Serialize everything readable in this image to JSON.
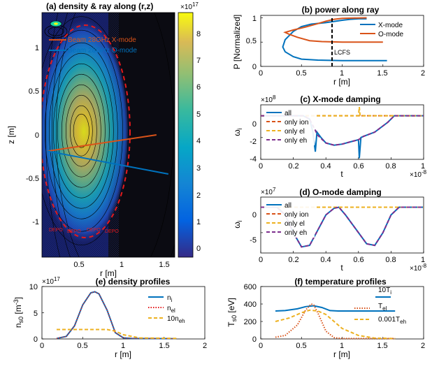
{
  "colors": {
    "blue": "#0072BD",
    "orange": "#D95319",
    "yellow": "#EDB120",
    "purple": "#7E2F8E",
    "red": "#E41A1C",
    "black": "#000000"
  },
  "panel_a": {
    "title": "(a) density & ray along (r,z)",
    "xlabel": "r [m]",
    "ylabel": "z [m]",
    "xticks": [
      "0.5",
      "1",
      "1.5"
    ],
    "yticks": [
      "1",
      "0.5",
      "0",
      "-0.5",
      "-1"
    ],
    "legend": [
      "Beam 28GHz X-mode",
      "Beam 28GHz O-mode"
    ],
    "colorbar_ticks": [
      "8",
      "7",
      "6",
      "5",
      "4",
      "3",
      "2",
      "1",
      "0"
    ],
    "colorbar_exponent": "×10",
    "colorbar_exponent_power": "17",
    "bottom_annotation": "DEPO"
  },
  "panel_b": {
    "title": "(b) power along ray",
    "xlabel": "r [m]",
    "ylabel": "P [Normalized]",
    "xticks": [
      "0",
      "0.5",
      "1",
      "1.5",
      "2"
    ],
    "yticks": [
      "1",
      "0.5",
      "0"
    ],
    "legend": [
      "X-mode",
      "O-mode"
    ],
    "annotation": "LCFS"
  },
  "panel_c": {
    "title": "(c) X-mode damping",
    "xlabel": "t",
    "ylabel": "ω",
    "ylabel_sub": "i",
    "xticks": [
      "0",
      "0.2",
      "0.4",
      "0.6",
      "0.8",
      "1"
    ],
    "yticks": [
      "0",
      "-2",
      "-4"
    ],
    "y_exponent": "×10",
    "y_exponent_power": "8",
    "x_exponent": "×10",
    "x_exponent_power": "-8",
    "legend": [
      "all",
      "only ion",
      "only el",
      "only eh"
    ]
  },
  "panel_d": {
    "title": "(d) O-mode damping",
    "xlabel": "t",
    "ylabel": "ω",
    "ylabel_sub": "i",
    "xticks": [
      "0",
      "0.2",
      "0.4",
      "0.6",
      "0.8",
      "1"
    ],
    "yticks": [
      "0",
      "-5"
    ],
    "y_exponent": "×10",
    "y_exponent_power": "7",
    "x_exponent": "×10",
    "x_exponent_power": "-8",
    "legend": [
      "all",
      "only ion",
      "only el",
      "only eh"
    ]
  },
  "panel_e": {
    "title": "(e) density profiles",
    "xlabel": "r [m]",
    "ylabel": "n",
    "ylabel_sub": "s0",
    "ylabel_unit": " [m",
    "ylabel_unit_sup": "-3",
    "ylabel_unit_end": "]",
    "xticks": [
      "0",
      "0.5",
      "1",
      "1.5",
      "2"
    ],
    "yticks": [
      "10",
      "5",
      "0"
    ],
    "y_exponent": "×10",
    "y_exponent_power": "17",
    "legend": [
      {
        "main": "n",
        "sub": "i"
      },
      {
        "main": "n",
        "sub": "el"
      },
      {
        "main": "10n",
        "sub": "eh"
      }
    ]
  },
  "panel_f": {
    "title": "(f) temperature profiles",
    "xlabel": "r [m]",
    "ylabel": "T",
    "ylabel_sub": "s0",
    "ylabel_unit": " [eV]",
    "xticks": [
      "0",
      "0.5",
      "1",
      "1.5",
      "2"
    ],
    "yticks": [
      "600",
      "400",
      "200",
      "0"
    ],
    "legend": [
      {
        "main": "10T",
        "sub": "i"
      },
      {
        "main": "T",
        "sub": "el"
      },
      {
        "main": "0.001T",
        "sub": "eh"
      }
    ]
  },
  "chart_data": [
    {
      "type": "heatmap",
      "title": "(a) density & ray along (r,z)",
      "xlabel": "r [m]",
      "ylabel": "z [m]",
      "xlim": [
        0.2,
        1.65
      ],
      "ylim": [
        -1.5,
        1.5
      ],
      "colorbar_range": [
        0,
        9
      ],
      "colorbar_exponent": 17,
      "peak": {
        "r": 0.63,
        "z": 0.05,
        "value": 8.8
      },
      "series": [
        {
          "name": "Beam 28GHz X-mode",
          "x": [
            0.26,
            1.45
          ],
          "y": [
            -0.2,
            0.0
          ]
        },
        {
          "name": "Beam 28GHz O-mode",
          "x": [
            0.26,
            1.58
          ],
          "y": [
            -0.2,
            -0.48
          ]
        }
      ]
    },
    {
      "type": "line",
      "title": "(b) power along ray",
      "xlabel": "r [m]",
      "ylabel": "P [Normalized]",
      "xlim": [
        0,
        2
      ],
      "ylim": [
        0,
        1.05
      ],
      "lcfs_r": 0.88,
      "series": [
        {
          "name": "X-mode",
          "x": [
            1.55,
            1.0,
            0.7,
            0.5,
            0.4,
            0.3,
            0.27,
            0.3,
            0.4,
            0.5,
            0.62,
            0.8,
            1.0,
            1.1,
            1.2,
            1.3
          ],
          "y": [
            0.12,
            0.12,
            0.13,
            0.15,
            0.2,
            0.3,
            0.4,
            0.55,
            0.72,
            0.82,
            0.87,
            0.9,
            0.95,
            0.97,
            0.98,
            0.98
          ]
        },
        {
          "name": "O-mode",
          "x": [
            1.5,
            1.0,
            0.75,
            0.6,
            0.45,
            0.35,
            0.3,
            0.4,
            0.55,
            0.7,
            0.8,
            0.9,
            1.0,
            1.3
          ],
          "y": [
            0.5,
            0.5,
            0.51,
            0.53,
            0.6,
            0.66,
            0.7,
            0.75,
            0.81,
            0.88,
            0.93,
            0.97,
            0.99,
            1.0
          ]
        }
      ]
    },
    {
      "type": "line",
      "title": "(c) X-mode damping",
      "xlabel": "t",
      "ylabel": "ωi",
      "xlim": [
        0,
        1
      ],
      "ylim": [
        -4,
        1
      ],
      "x_exponent": -8,
      "y_exponent": 8,
      "series": [
        {
          "name": "all",
          "x": [
            0,
            0.26,
            0.3,
            0.32,
            0.335,
            0.345,
            0.37,
            0.4,
            0.45,
            0.5,
            0.55,
            0.6,
            0.605,
            0.615,
            0.63,
            0.7,
            0.78,
            0.82,
            1.0
          ],
          "y": [
            0,
            0,
            -0.3,
            -1.5,
            -3.3,
            -1.5,
            -2.0,
            -2.5,
            -2.7,
            -2.6,
            -2.4,
            -2.2,
            -3.9,
            -2.0,
            -1.9,
            -1.5,
            -0.6,
            0,
            0
          ]
        },
        {
          "name": "only ion",
          "x": [
            0,
            1.0
          ],
          "y": [
            0,
            0
          ]
        },
        {
          "name": "only el",
          "x": [
            0,
            0.6,
            0.605,
            0.61,
            1.0
          ],
          "y": [
            0,
            0,
            0.8,
            0,
            0
          ]
        },
        {
          "name": "only eh",
          "x": [
            0,
            0.26,
            0.3,
            0.35,
            0.4,
            0.45,
            0.5,
            0.55,
            0.6,
            0.63,
            0.7,
            0.78,
            0.82,
            1.0
          ],
          "y": [
            0,
            0,
            -0.3,
            -1.8,
            -2.5,
            -2.7,
            -2.6,
            -2.4,
            -2.2,
            -1.9,
            -1.5,
            -0.6,
            0,
            0
          ]
        }
      ]
    },
    {
      "type": "line",
      "title": "(d) O-mode damping",
      "xlabel": "t",
      "ylabel": "ωi",
      "xlim": [
        0,
        1
      ],
      "ylim": [
        -9,
        2
      ],
      "x_exponent": -8,
      "y_exponent": 7,
      "series": [
        {
          "name": "all",
          "x": [
            0,
            0.1,
            0.15,
            0.2,
            0.25,
            0.3,
            0.35,
            0.4,
            0.45,
            0.48,
            0.52,
            0.6,
            0.65,
            0.7,
            0.75,
            0.8,
            0.85,
            1.0
          ],
          "y": [
            0,
            0,
            -1.5,
            -5,
            -7.8,
            -7.5,
            -4.5,
            -1.5,
            -0.2,
            0,
            -1.5,
            -5,
            -7.2,
            -7.5,
            -5,
            -1.5,
            0,
            0
          ]
        },
        {
          "name": "only ion",
          "x": [
            0,
            1.0
          ],
          "y": [
            0,
            0
          ]
        },
        {
          "name": "only el",
          "x": [
            0,
            1.0
          ],
          "y": [
            0,
            0
          ]
        },
        {
          "name": "only eh",
          "x": [
            0,
            0.1,
            0.15,
            0.2,
            0.25,
            0.3,
            0.35,
            0.4,
            0.45,
            0.48,
            0.52,
            0.6,
            0.65,
            0.7,
            0.75,
            0.8,
            0.85,
            1.0
          ],
          "y": [
            0,
            0,
            -1.5,
            -5,
            -7.8,
            -7.5,
            -4.5,
            -1.5,
            -0.2,
            0,
            -1.5,
            -5,
            -7.2,
            -7.5,
            -5,
            -1.5,
            0,
            0
          ]
        }
      ]
    },
    {
      "type": "line",
      "title": "(e) density profiles",
      "xlabel": "r [m]",
      "ylabel": "ns0 [m-3]",
      "xlim": [
        0,
        2
      ],
      "ylim": [
        0,
        10
      ],
      "y_exponent": 17,
      "series": [
        {
          "name": "ni",
          "x": [
            0.18,
            0.3,
            0.4,
            0.5,
            0.6,
            0.65,
            0.7,
            0.8,
            0.9,
            1.0,
            1.1,
            1.65
          ],
          "y": [
            0.1,
            0.5,
            2.5,
            6.5,
            8.8,
            9.0,
            8.6,
            5.5,
            1.2,
            0.2,
            0.1,
            0.05
          ]
        },
        {
          "name": "nel",
          "x": [
            0.18,
            0.3,
            0.4,
            0.5,
            0.6,
            0.65,
            0.7,
            0.8,
            0.9,
            1.0,
            1.1,
            1.65
          ],
          "y": [
            0.1,
            0.5,
            2.5,
            6.5,
            8.8,
            9.0,
            8.6,
            5.5,
            1.2,
            0.2,
            0.1,
            0.05
          ]
        },
        {
          "name": "10neh",
          "x": [
            0.18,
            0.8,
            0.9,
            1.0,
            1.2,
            1.65
          ],
          "y": [
            1.8,
            1.8,
            1.5,
            0.8,
            0.2,
            0.1
          ]
        }
      ]
    },
    {
      "type": "line",
      "title": "(f) temperature profiles",
      "xlabel": "r [m]",
      "ylabel": "Ts0 [eV]",
      "xlim": [
        0,
        2
      ],
      "ylim": [
        0,
        600
      ],
      "series": [
        {
          "name": "10Ti",
          "x": [
            0.18,
            0.3,
            0.45,
            0.55,
            0.65,
            0.75,
            0.85,
            0.95,
            1.65
          ],
          "y": [
            320,
            325,
            345,
            370,
            380,
            360,
            325,
            320,
            320
          ]
        },
        {
          "name": "Tel",
          "x": [
            0.18,
            0.3,
            0.45,
            0.55,
            0.62,
            0.65,
            0.7,
            0.8,
            0.9,
            1.0,
            1.65
          ],
          "y": [
            20,
            40,
            160,
            330,
            400,
            390,
            300,
            90,
            15,
            5,
            5
          ]
        },
        {
          "name": "0.001Teh",
          "x": [
            0.18,
            0.35,
            0.5,
            0.6,
            0.7,
            0.8,
            0.9,
            1.0,
            1.2,
            1.4,
            1.65
          ],
          "y": [
            200,
            240,
            300,
            330,
            320,
            280,
            200,
            120,
            40,
            10,
            5
          ]
        }
      ]
    }
  ]
}
